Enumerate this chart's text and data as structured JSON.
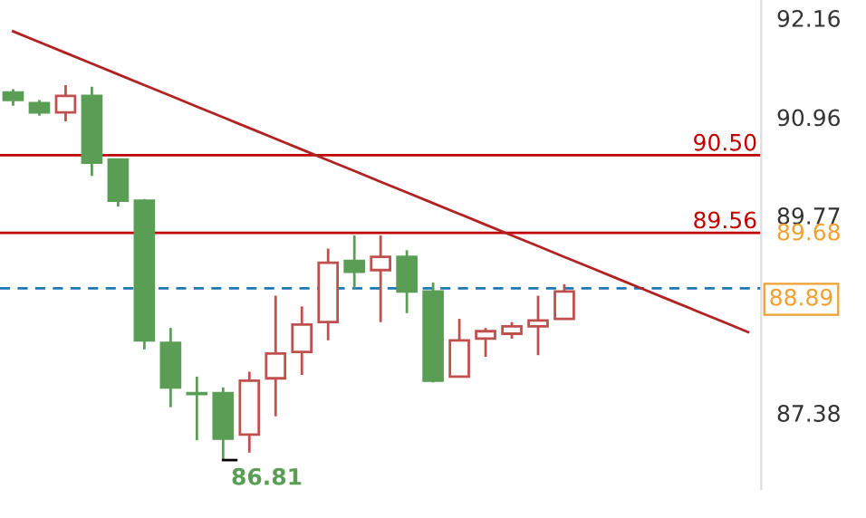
{
  "chart_data": {
    "type": "candlestick",
    "categories": [
      null,
      null,
      null,
      null,
      null,
      null,
      null,
      null,
      null,
      null,
      null,
      null,
      null,
      null,
      null,
      null,
      null,
      null,
      null,
      null,
      null,
      null,
      null,
      null,
      null,
      null,
      null,
      null,
      null
    ],
    "ohlc": [
      [
        91.26,
        91.3,
        91.1,
        91.17
      ],
      [
        91.13,
        91.17,
        90.98,
        91.02
      ],
      [
        91.02,
        91.35,
        90.91,
        91.22
      ],
      [
        91.22,
        91.33,
        90.25,
        90.41
      ],
      [
        90.45,
        90.45,
        89.88,
        89.95
      ],
      [
        89.95,
        89.97,
        88.15,
        88.26
      ],
      [
        88.23,
        88.41,
        87.45,
        87.69
      ],
      [
        87.62,
        87.82,
        87.05,
        87.61
      ],
      [
        87.62,
        87.69,
        86.81,
        87.07
      ],
      [
        87.12,
        87.88,
        86.9,
        87.77
      ],
      [
        87.8,
        88.8,
        87.34,
        88.1
      ],
      [
        88.12,
        88.67,
        87.84,
        88.45
      ],
      [
        88.48,
        89.37,
        88.26,
        89.2
      ],
      [
        89.22,
        89.53,
        88.89,
        89.09
      ],
      [
        89.11,
        89.53,
        88.48,
        89.27
      ],
      [
        89.27,
        89.35,
        88.59,
        88.85
      ],
      [
        88.85,
        88.96,
        87.75,
        87.77
      ],
      [
        87.82,
        88.52,
        87.82,
        88.26
      ],
      [
        88.28,
        88.41,
        88.06,
        88.37
      ],
      [
        88.34,
        88.48,
        88.28,
        88.43
      ],
      [
        88.43,
        88.8,
        88.08,
        88.5
      ],
      [
        88.52,
        88.94,
        88.52,
        88.85
      ],
      null,
      null,
      null,
      null,
      null,
      null,
      null
    ],
    "series": [
      {
        "type": "line",
        "color": "#b22222",
        "values": [
          92.0,
          91.87,
          91.74,
          91.61,
          91.48,
          91.35,
          91.22,
          91.09,
          90.96,
          90.83,
          90.7,
          90.57,
          90.44,
          90.31,
          90.18,
          90.05,
          89.92,
          89.79,
          89.66,
          89.53,
          89.4,
          89.27,
          89.14,
          89.01,
          88.88,
          88.75,
          88.62,
          88.49,
          88.36
        ]
      }
    ],
    "ylim": [
      86.46,
      92.38
    ],
    "yticks": [
      92.16,
      90.96,
      89.77,
      {
        "value": 89.68,
        "label": "89.68"
      },
      87.38
    ],
    "ref_lines": [
      {
        "axis": "y",
        "value": 90.5,
        "label": "90.50",
        "color": "#c00000",
        "line_style": "solid"
      },
      {
        "axis": "y",
        "value": 89.56,
        "label": "89.56",
        "color": "#c00000",
        "line_style": "solid"
      },
      {
        "axis": "y",
        "value": 88.89,
        "label": "88.89",
        "color": "#1f77b4",
        "line_style": "dashed"
      }
    ],
    "annotations": [
      "86.81"
    ],
    "grid": false
  }
}
